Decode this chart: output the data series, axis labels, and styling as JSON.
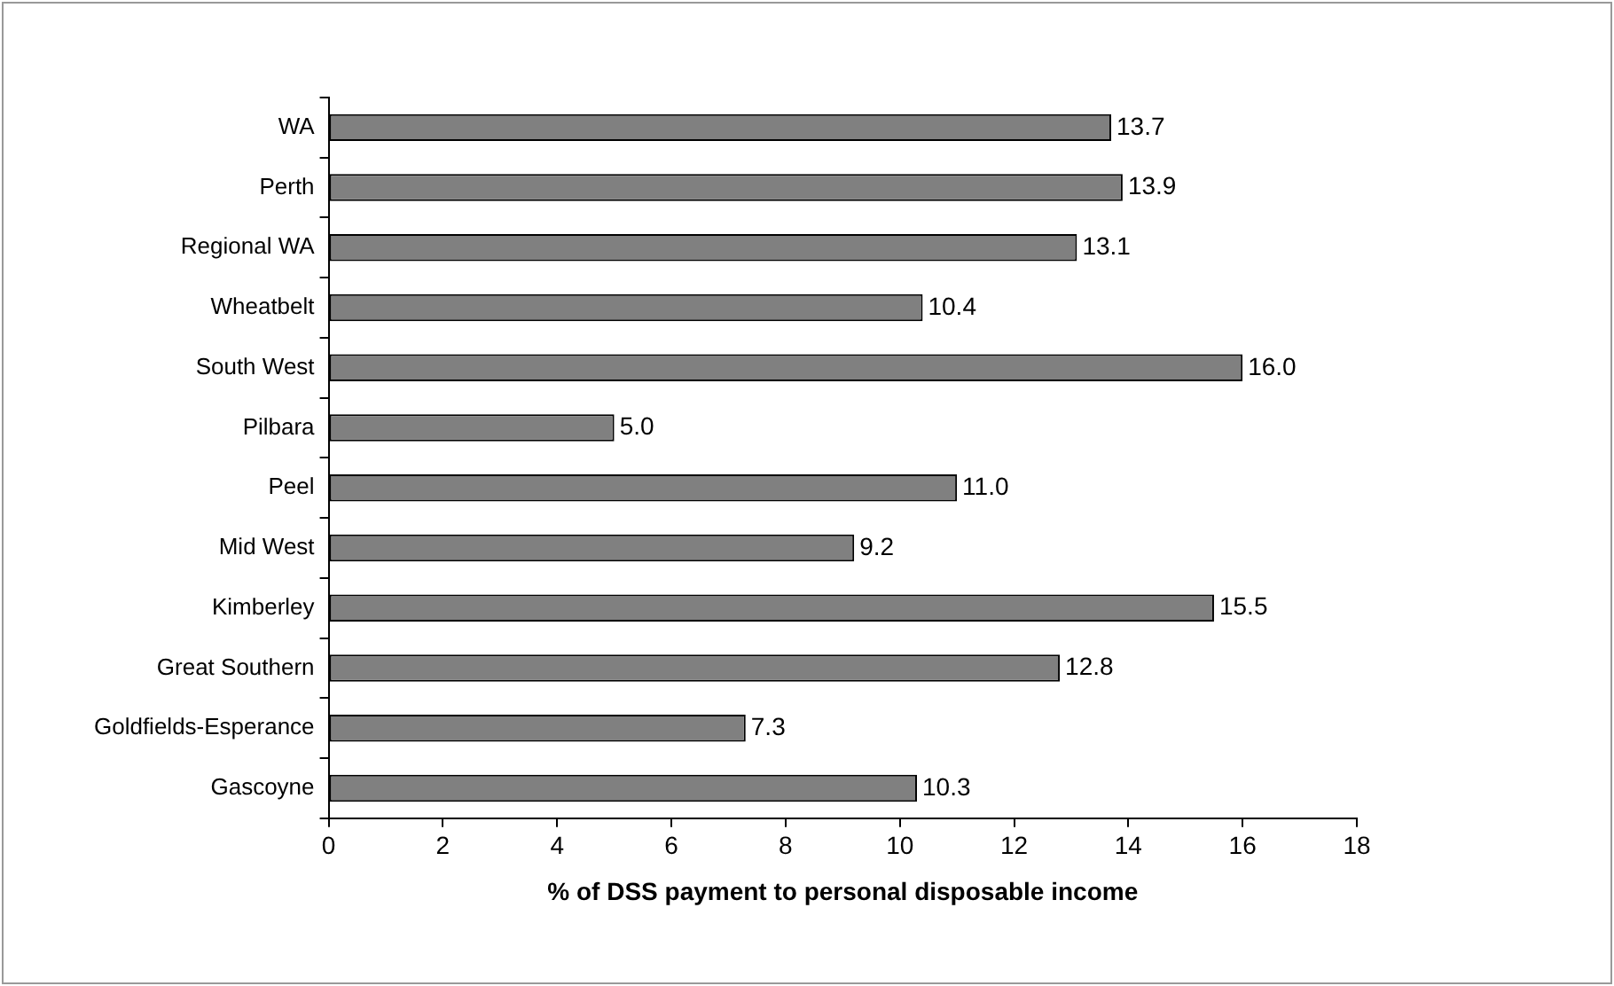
{
  "chart_data": {
    "type": "bar",
    "orientation": "horizontal",
    "xlabel": "% of DSS payment to personal disposable income",
    "categories": [
      "WA",
      "Perth",
      "Regional WA",
      "Wheatbelt",
      "South West",
      "Pilbara",
      "Peel",
      "Mid West",
      "Kimberley",
      "Great Southern",
      "Goldfields-Esperance",
      "Gascoyne"
    ],
    "values": [
      13.7,
      13.9,
      13.1,
      10.4,
      16.0,
      5.0,
      11.0,
      9.2,
      15.5,
      12.8,
      7.3,
      10.3
    ],
    "value_labels": [
      "13.7",
      "13.9",
      "13.1",
      "10.4",
      "16.0",
      "5.0",
      "11.0",
      "9.2",
      "15.5",
      "12.8",
      "7.3",
      "10.3"
    ],
    "color": "#808080",
    "xlim": [
      0,
      18
    ],
    "xticks": [
      0,
      2,
      4,
      6,
      8,
      10,
      12,
      14,
      16,
      18
    ],
    "grid": false,
    "legend": false
  }
}
